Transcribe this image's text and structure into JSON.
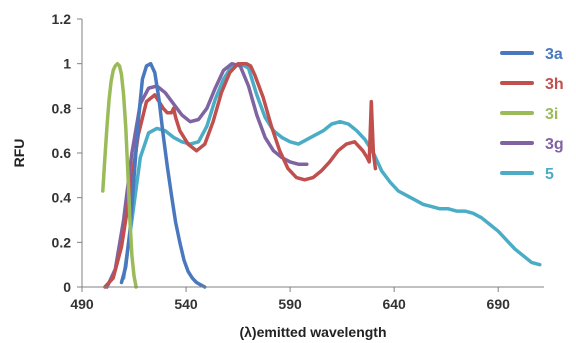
{
  "chart_data": {
    "type": "line",
    "xlabel": "(λ)emitted wavelength",
    "ylabel": "RFU",
    "xlim": [
      490,
      712
    ],
    "ylim": [
      0,
      1.2
    ],
    "x_ticks": [
      490,
      540,
      590,
      640,
      690
    ],
    "y_ticks": [
      0,
      0.2,
      0.4,
      0.6,
      0.8,
      1,
      1.2
    ],
    "y_tick_labels": [
      "0",
      "0.2",
      "0.4",
      "0.6",
      "0.8",
      "1",
      "1.2"
    ],
    "grid": false,
    "legend_position": "right",
    "series": [
      {
        "name": "3a",
        "color": "#4a78bf",
        "x": [
          509,
          511,
          513,
          515,
          517,
          519,
          521,
          523,
          525,
          527,
          529,
          531,
          533,
          535,
          537,
          539,
          541,
          543,
          545,
          547,
          549
        ],
        "y": [
          0.02,
          0.09,
          0.25,
          0.49,
          0.74,
          0.93,
          0.99,
          1.0,
          0.96,
          0.84,
          0.68,
          0.54,
          0.41,
          0.29,
          0.2,
          0.12,
          0.07,
          0.04,
          0.02,
          0.01,
          0.0
        ]
      },
      {
        "name": "3h",
        "color": "#c0504d",
        "x": [
          501,
          505,
          509,
          513,
          517,
          521,
          525,
          527,
          529,
          531,
          533,
          534,
          535,
          537,
          541,
          545,
          549,
          553,
          557,
          561,
          565,
          569,
          571,
          573,
          577,
          581,
          585,
          589,
          593,
          597,
          601,
          605,
          609,
          613,
          617,
          621,
          625,
          627,
          628,
          629,
          630,
          631
        ],
        "y": [
          0.0,
          0.04,
          0.18,
          0.42,
          0.68,
          0.83,
          0.86,
          0.83,
          0.8,
          0.78,
          0.78,
          0.8,
          0.76,
          0.7,
          0.64,
          0.61,
          0.64,
          0.74,
          0.87,
          0.96,
          1.0,
          1.0,
          0.99,
          0.95,
          0.85,
          0.72,
          0.61,
          0.53,
          0.49,
          0.48,
          0.49,
          0.52,
          0.56,
          0.61,
          0.64,
          0.65,
          0.61,
          0.58,
          0.56,
          0.83,
          0.6,
          0.53
        ]
      },
      {
        "name": "3i",
        "color": "#9bbb59",
        "x": [
          500,
          501,
          502,
          503,
          504,
          505,
          506,
          507,
          508,
          509,
          510,
          511,
          512,
          513,
          514,
          515,
          516
        ],
        "y": [
          0.43,
          0.58,
          0.72,
          0.84,
          0.92,
          0.97,
          0.99,
          1.0,
          0.99,
          0.95,
          0.86,
          0.72,
          0.52,
          0.3,
          0.14,
          0.05,
          0.0
        ]
      },
      {
        "name": "3g",
        "color": "#8064a2",
        "x": [
          502,
          506,
          510,
          514,
          518,
          522,
          526,
          530,
          534,
          538,
          542,
          546,
          550,
          554,
          558,
          562,
          566,
          570,
          574,
          578,
          582,
          586,
          590,
          594,
          598
        ],
        "y": [
          0.0,
          0.08,
          0.3,
          0.6,
          0.82,
          0.89,
          0.9,
          0.87,
          0.82,
          0.77,
          0.74,
          0.75,
          0.8,
          0.89,
          0.97,
          1.0,
          0.99,
          0.9,
          0.77,
          0.67,
          0.61,
          0.58,
          0.56,
          0.55,
          0.55
        ]
      },
      {
        "name": "5",
        "color": "#4bacc6",
        "x": [
          510,
          514,
          518,
          522,
          526,
          530,
          534,
          538,
          542,
          546,
          550,
          554,
          558,
          562,
          566,
          570,
          574,
          578,
          582,
          586,
          590,
          594,
          598,
          602,
          606,
          610,
          614,
          618,
          622,
          626,
          630,
          634,
          638,
          642,
          646,
          650,
          654,
          658,
          662,
          666,
          670,
          674,
          678,
          682,
          686,
          690,
          694,
          698,
          702,
          706,
          710
        ],
        "y": [
          0.04,
          0.3,
          0.58,
          0.69,
          0.71,
          0.7,
          0.67,
          0.65,
          0.64,
          0.65,
          0.72,
          0.84,
          0.93,
          0.99,
          1.0,
          0.98,
          0.86,
          0.76,
          0.7,
          0.67,
          0.65,
          0.64,
          0.66,
          0.68,
          0.7,
          0.73,
          0.74,
          0.73,
          0.7,
          0.66,
          0.6,
          0.52,
          0.47,
          0.43,
          0.41,
          0.39,
          0.37,
          0.36,
          0.35,
          0.35,
          0.34,
          0.34,
          0.33,
          0.31,
          0.28,
          0.25,
          0.21,
          0.17,
          0.14,
          0.11,
          0.1
        ]
      }
    ]
  }
}
